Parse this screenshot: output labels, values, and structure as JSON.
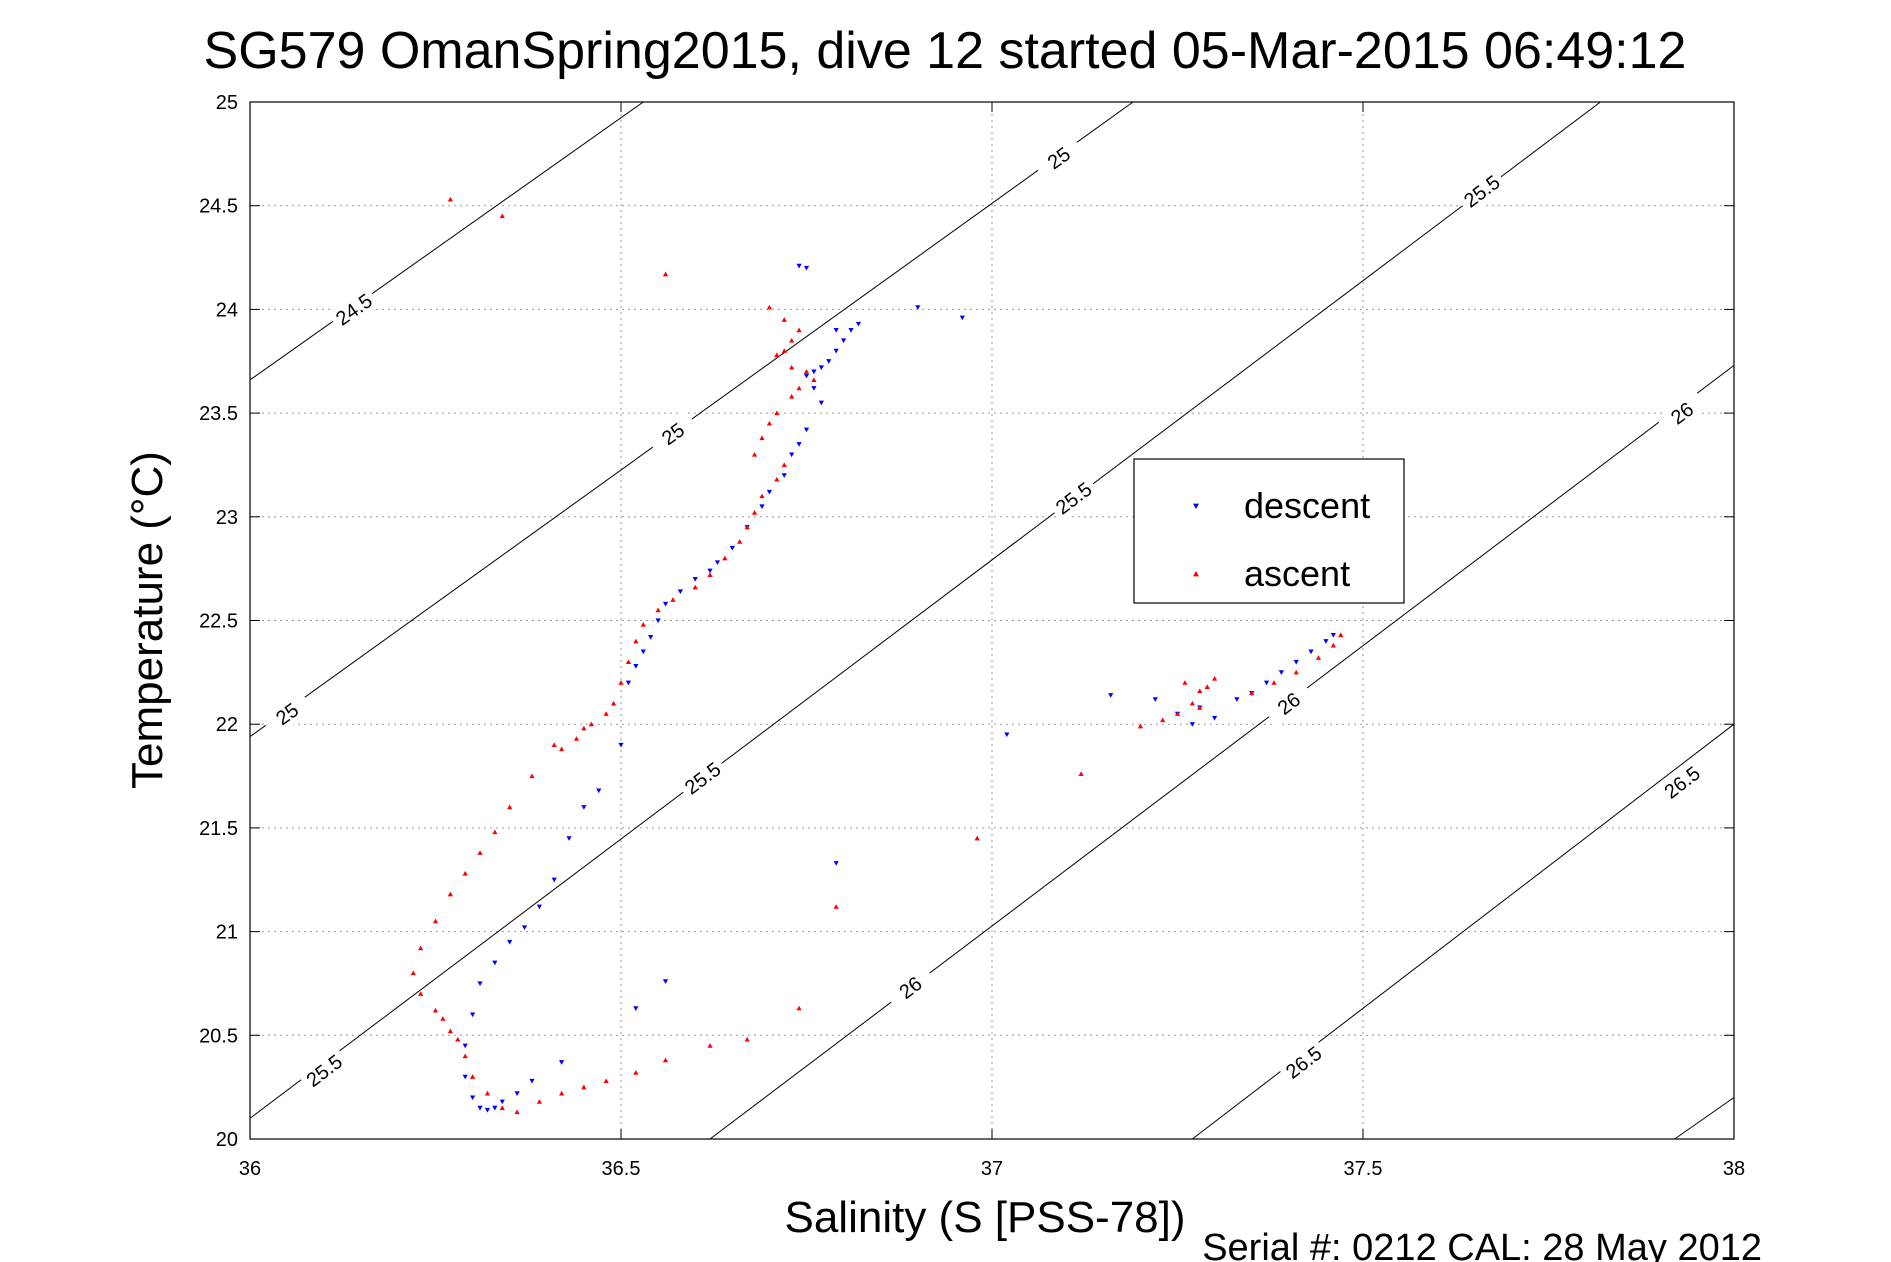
{
  "footer": "Serial #: 0212  CAL: 28 May 2012",
  "chart_data": {
    "type": "scatter",
    "title": "SG579 OmanSpring2015, dive 12 started 05-Mar-2015 06:49:12",
    "xlabel": "Salinity (S [PSS-78])",
    "ylabel": "Temperature (°C)",
    "xlim": [
      36,
      38
    ],
    "ylim": [
      20,
      25
    ],
    "xticks": [
      "36",
      "36.5",
      "37",
      "37.5",
      "38"
    ],
    "yticks": [
      "20",
      "20.5",
      "21",
      "21.5",
      "22",
      "22.5",
      "23",
      "23.5",
      "24",
      "24.5",
      "25"
    ],
    "grid": true,
    "legend_position": "right-center",
    "density_contours": [
      {
        "level": "24.5",
        "points": [
          [
            36.0,
            23.66
          ],
          [
            36.53,
            25.0
          ]
        ],
        "label_at": [
          [
            36.14,
            24.0
          ]
        ]
      },
      {
        "level": "25",
        "points": [
          [
            36.0,
            21.94
          ],
          [
            37.19,
            25.0
          ]
        ],
        "label_at": [
          [
            36.05,
            22.05
          ],
          [
            36.57,
            23.4
          ],
          [
            37.09,
            24.73
          ]
        ]
      },
      {
        "level": "25.5",
        "points": [
          [
            36.0,
            20.1
          ],
          [
            37.82,
            25.0
          ]
        ],
        "label_at": [
          [
            36.1,
            20.33
          ],
          [
            36.61,
            21.74
          ],
          [
            37.11,
            23.09
          ],
          [
            37.66,
            24.57
          ]
        ]
      },
      {
        "level": "26",
        "points": [
          [
            36.62,
            20.0
          ],
          [
            38.0,
            23.73
          ]
        ],
        "label_at": [
          [
            36.89,
            20.73
          ],
          [
            37.4,
            22.1
          ],
          [
            37.93,
            23.5
          ]
        ]
      },
      {
        "level": "26.5",
        "points": [
          [
            37.27,
            20.0
          ],
          [
            38.0,
            22.0
          ]
        ],
        "label_at": [
          [
            37.42,
            20.37
          ],
          [
            37.93,
            21.72
          ]
        ]
      },
      {
        "level": "",
        "points": [
          [
            37.92,
            20.0
          ],
          [
            38.0,
            20.2
          ]
        ],
        "label_at": []
      }
    ],
    "series": [
      {
        "name": "descent",
        "marker": "triangle-down",
        "color": "#0000ff",
        "x": [
          36.74,
          36.75,
          36.9,
          36.96,
          36.82,
          36.81,
          36.8,
          36.79,
          36.78,
          36.77,
          36.76,
          36.75,
          36.76,
          36.77,
          36.79,
          36.75,
          36.74,
          36.73,
          36.72,
          36.7,
          36.69,
          36.67,
          36.65,
          36.63,
          36.62,
          36.6,
          36.58,
          36.56,
          36.55,
          36.54,
          36.53,
          36.52,
          36.51,
          36.5,
          36.47,
          36.45,
          36.43,
          36.41,
          36.39,
          36.37,
          36.35,
          36.33,
          36.31,
          36.3,
          36.29,
          36.29,
          36.3,
          36.31,
          36.32,
          36.33,
          36.34,
          36.36,
          36.38,
          36.42,
          36.52,
          36.56,
          36.79,
          37.02,
          37.16,
          37.22,
          37.25,
          37.27,
          37.28,
          37.3,
          37.33,
          37.35,
          37.37,
          37.39,
          37.41,
          37.43,
          37.45,
          37.46
        ],
        "y": [
          24.21,
          24.2,
          24.01,
          23.96,
          23.93,
          23.9,
          23.85,
          23.8,
          23.75,
          23.72,
          23.7,
          23.68,
          23.62,
          23.55,
          23.9,
          23.42,
          23.35,
          23.3,
          23.2,
          23.12,
          23.05,
          22.95,
          22.85,
          22.78,
          22.74,
          22.7,
          22.64,
          22.58,
          22.5,
          22.42,
          22.35,
          22.28,
          22.2,
          21.9,
          21.68,
          21.6,
          21.45,
          21.25,
          21.12,
          21.02,
          20.95,
          20.85,
          20.75,
          20.6,
          20.45,
          20.3,
          20.2,
          20.15,
          20.14,
          20.15,
          20.18,
          20.22,
          20.28,
          20.37,
          20.63,
          20.76,
          21.33,
          21.95,
          22.14,
          22.12,
          22.05,
          22.0,
          22.08,
          22.03,
          22.12,
          22.15,
          22.2,
          22.25,
          22.3,
          22.35,
          22.4,
          22.43
        ]
      },
      {
        "name": "ascent",
        "marker": "triangle-up",
        "color": "#ff0000",
        "x": [
          36.27,
          36.34,
          36.56,
          36.7,
          36.72,
          36.74,
          36.73,
          36.72,
          36.71,
          36.73,
          36.75,
          36.76,
          36.74,
          36.73,
          36.71,
          36.7,
          36.69,
          36.68,
          36.72,
          36.71,
          36.69,
          36.68,
          36.67,
          36.66,
          36.64,
          36.62,
          36.6,
          36.57,
          36.55,
          36.53,
          36.52,
          36.51,
          36.5,
          36.49,
          36.48,
          36.46,
          36.44,
          36.41,
          36.38,
          36.35,
          36.33,
          36.31,
          36.29,
          36.27,
          36.25,
          36.23,
          36.22,
          36.23,
          36.25,
          36.26,
          36.27,
          36.28,
          36.29,
          36.3,
          36.32,
          36.34,
          36.36,
          36.39,
          36.42,
          36.45,
          36.48,
          36.52,
          36.56,
          36.62,
          36.67,
          36.74,
          36.79,
          36.98,
          37.12,
          37.2,
          37.23,
          37.25,
          37.27,
          37.28,
          37.26,
          37.29,
          37.3,
          37.28,
          37.35,
          37.38,
          37.41,
          37.44,
          37.46,
          37.47,
          36.42,
          36.45
        ],
        "y": [
          24.53,
          24.45,
          24.17,
          24.01,
          23.95,
          23.9,
          23.85,
          23.8,
          23.78,
          23.72,
          23.7,
          23.66,
          23.62,
          23.58,
          23.5,
          23.45,
          23.38,
          23.3,
          23.25,
          23.18,
          23.1,
          23.02,
          22.95,
          22.88,
          22.8,
          22.72,
          22.66,
          22.6,
          22.55,
          22.48,
          22.4,
          22.3,
          22.2,
          22.1,
          22.05,
          22.0,
          21.93,
          21.9,
          21.75,
          21.6,
          21.48,
          21.38,
          21.28,
          21.18,
          21.05,
          20.92,
          20.8,
          20.7,
          20.62,
          20.58,
          20.52,
          20.48,
          20.4,
          20.3,
          20.22,
          20.15,
          20.13,
          20.18,
          20.22,
          20.25,
          20.28,
          20.32,
          20.38,
          20.45,
          20.48,
          20.63,
          21.12,
          21.45,
          21.76,
          21.99,
          22.02,
          22.05,
          22.1,
          22.16,
          22.2,
          22.18,
          22.22,
          22.08,
          22.15,
          22.2,
          22.25,
          22.32,
          22.38,
          22.43,
          21.88,
          21.98
        ]
      }
    ]
  }
}
